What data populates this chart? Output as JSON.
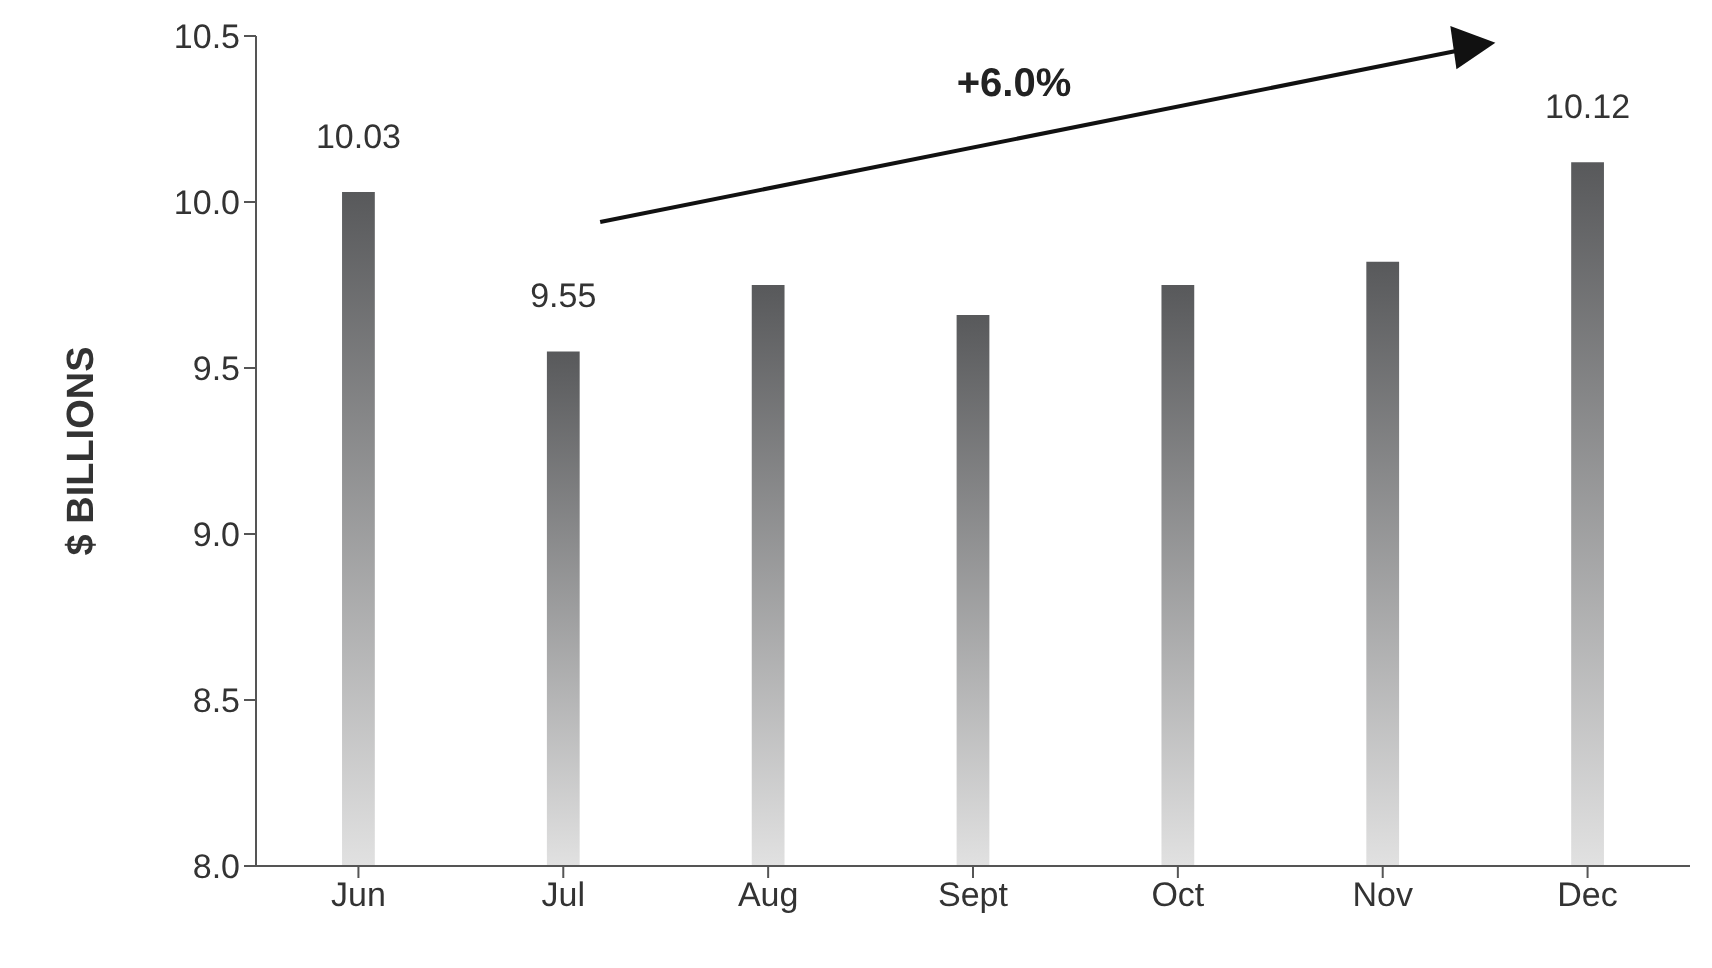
{
  "chart_data": {
    "type": "bar",
    "ylabel": "$ BILLIONS",
    "categories": [
      "Jun",
      "Jul",
      "Aug",
      "Sept",
      "Oct",
      "Nov",
      "Dec"
    ],
    "values": [
      10.03,
      9.55,
      9.75,
      9.66,
      9.75,
      9.82,
      10.12
    ],
    "value_labels": [
      "10.03",
      "9.55",
      null,
      null,
      null,
      null,
      "10.12"
    ],
    "color": "#58595b",
    "ylim": [
      8.0,
      10.5
    ],
    "yticks": [
      {
        "value": 8,
        "label": "8.0"
      },
      {
        "value": 8.5,
        "label": "8.5"
      },
      {
        "value": 9,
        "label": "9.0"
      },
      {
        "value": 9.5,
        "label": "9.5"
      },
      {
        "value": 10,
        "label": "10.0"
      },
      {
        "value": 10.5,
        "label": "10.5"
      }
    ],
    "annotations": [
      "+6.0%"
    ],
    "grid": false,
    "legend": false
  }
}
